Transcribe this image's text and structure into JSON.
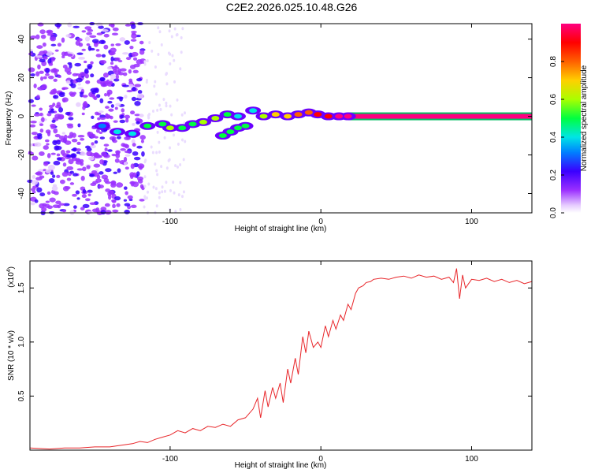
{
  "title": "C2E2.2026.025.10.48.G26",
  "colors": {
    "snr_line": "#e8262a",
    "axis": "#000000",
    "background": "#ffffff"
  },
  "chart_data": [
    {
      "type": "heatmap",
      "name": "spectrogram",
      "xlabel": "Height of straight line (km)",
      "ylabel": "Frequency (Hz)",
      "xlim": [
        -193,
        140
      ],
      "ylim": [
        -50,
        48
      ],
      "xticks": [
        {
          "value": -100,
          "label": "-100"
        },
        {
          "value": 0,
          "label": "0"
        },
        {
          "value": 100,
          "label": "100"
        }
      ],
      "yticks": [
        {
          "value": 40,
          "label": "40"
        },
        {
          "value": 20,
          "label": "20"
        },
        {
          "value": 0,
          "label": "0"
        },
        {
          "value": -20,
          "label": "-20"
        },
        {
          "value": -40,
          "label": "-40"
        }
      ],
      "colorbar": {
        "label": "Normalized spectral amplitude",
        "range": [
          0,
          1
        ],
        "ticks": [
          {
            "value": 0.0,
            "label": "0.0"
          },
          {
            "value": 0.2,
            "label": "0.2"
          },
          {
            "value": 0.4,
            "label": "0.4"
          },
          {
            "value": 0.6,
            "label": "0.6"
          },
          {
            "value": 0.8,
            "label": "0.8"
          }
        ]
      },
      "ridge": [
        {
          "x": -145,
          "y": -5,
          "amp": 0.3
        },
        {
          "x": -135,
          "y": -8,
          "amp": 0.35
        },
        {
          "x": -125,
          "y": -9,
          "amp": 0.4
        },
        {
          "x": -115,
          "y": -5,
          "amp": 0.45
        },
        {
          "x": -105,
          "y": -4,
          "amp": 0.5
        },
        {
          "x": -100,
          "y": -6,
          "amp": 0.55
        },
        {
          "x": -92,
          "y": -6,
          "amp": 0.5
        },
        {
          "x": -85,
          "y": -4,
          "amp": 0.5
        },
        {
          "x": -78,
          "y": -3,
          "amp": 0.55
        },
        {
          "x": -70,
          "y": -1,
          "amp": 0.6
        },
        {
          "x": -62,
          "y": 1,
          "amp": 0.45
        },
        {
          "x": -55,
          "y": 0,
          "amp": 0.35
        },
        {
          "x": -45,
          "y": 3,
          "amp": 0.4
        },
        {
          "x": -38,
          "y": 0,
          "amp": 0.55
        },
        {
          "x": -30,
          "y": 1,
          "amp": 0.65
        },
        {
          "x": -22,
          "y": 0,
          "amp": 0.7
        },
        {
          "x": -15,
          "y": 1,
          "amp": 0.75
        },
        {
          "x": -8,
          "y": 2,
          "amp": 0.8
        },
        {
          "x": -2,
          "y": 1,
          "amp": 0.85
        },
        {
          "x": 5,
          "y": 0,
          "amp": 0.88
        },
        {
          "x": 12,
          "y": 0,
          "amp": 0.92
        },
        {
          "x": 18,
          "y": 0,
          "amp": 0.95
        }
      ],
      "branch": [
        {
          "x": -65,
          "y": -10,
          "amp": 0.45
        },
        {
          "x": -60,
          "y": -8,
          "amp": 0.5
        },
        {
          "x": -55,
          "y": -6,
          "amp": 0.5
        },
        {
          "x": -50,
          "y": -5,
          "amp": 0.45
        }
      ],
      "steady_line": {
        "x_start": 18,
        "x_end": 140,
        "y": 0,
        "amp": 0.97
      }
    },
    {
      "type": "line",
      "name": "snr",
      "xlabel": "Height of straight line (km)",
      "ylabel": "SNR (10 * v/v)",
      "scale_label": "(x10",
      "scale_exponent": "4",
      "scale_suffix": ")",
      "xlim": [
        -193,
        140
      ],
      "ylim": [
        0,
        1.75
      ],
      "xticks": [
        {
          "value": -100,
          "label": "-100"
        },
        {
          "value": 0,
          "label": "0"
        },
        {
          "value": 100,
          "label": "100"
        }
      ],
      "yticks": [
        {
          "value": 0.5,
          "label": "0.5"
        },
        {
          "value": 1.0,
          "label": "1.0"
        },
        {
          "value": 1.5,
          "label": "1.5"
        }
      ],
      "series": [
        {
          "name": "SNR",
          "x": [
            -193,
            -180,
            -170,
            -160,
            -150,
            -140,
            -130,
            -125,
            -120,
            -115,
            -110,
            -105,
            -100,
            -95,
            -90,
            -85,
            -80,
            -75,
            -70,
            -65,
            -60,
            -55,
            -50,
            -45,
            -42,
            -40,
            -37,
            -35,
            -32,
            -30,
            -27,
            -25,
            -22,
            -20,
            -17,
            -15,
            -12,
            -10,
            -8,
            -5,
            -2,
            0,
            3,
            5,
            8,
            10,
            13,
            15,
            18,
            20,
            23,
            25,
            28,
            30,
            33,
            35,
            40,
            45,
            50,
            55,
            60,
            65,
            70,
            75,
            80,
            85,
            88,
            90,
            92,
            94,
            96,
            100,
            105,
            110,
            115,
            120,
            125,
            130,
            135,
            140
          ],
          "y": [
            0.02,
            0.01,
            0.02,
            0.02,
            0.03,
            0.03,
            0.05,
            0.06,
            0.08,
            0.07,
            0.1,
            0.12,
            0.14,
            0.18,
            0.16,
            0.2,
            0.18,
            0.22,
            0.21,
            0.24,
            0.22,
            0.28,
            0.3,
            0.38,
            0.48,
            0.3,
            0.55,
            0.4,
            0.58,
            0.48,
            0.62,
            0.44,
            0.75,
            0.62,
            0.85,
            0.7,
            1.05,
            0.9,
            1.1,
            0.95,
            1.0,
            0.95,
            1.15,
            1.05,
            1.2,
            1.12,
            1.25,
            1.2,
            1.35,
            1.3,
            1.45,
            1.5,
            1.52,
            1.55,
            1.56,
            1.58,
            1.59,
            1.58,
            1.6,
            1.61,
            1.59,
            1.62,
            1.6,
            1.61,
            1.58,
            1.6,
            1.55,
            1.68,
            1.4,
            1.62,
            1.5,
            1.58,
            1.57,
            1.59,
            1.56,
            1.58,
            1.55,
            1.57,
            1.54,
            1.56
          ],
          "color": "#e8262a"
        }
      ]
    }
  ]
}
